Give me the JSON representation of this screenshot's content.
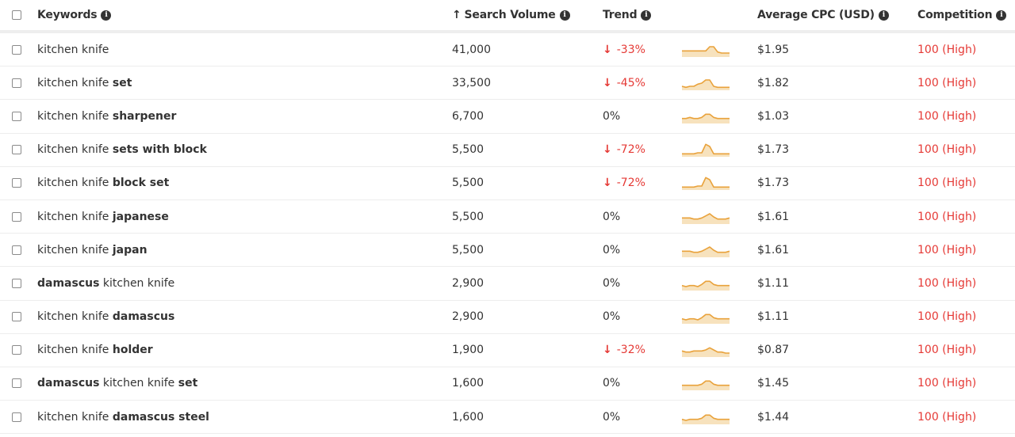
{
  "header": {
    "keywords": "Keywords",
    "search_volume": "Search Volume",
    "search_volume_sort": "↑",
    "trend": "Trend",
    "avg_cpc": "Average CPC (USD)",
    "competition": "Competition",
    "info_glyph": "i"
  },
  "colors": {
    "negative": "#e53935",
    "sparkline_stroke": "#e9a23b",
    "sparkline_fill": "#f7e2bd"
  },
  "rows": [
    {
      "kw_plain": "kitchen knife",
      "kw_bold": "",
      "kw_order": "plain-bold",
      "volume": "41,000",
      "trend": "-33%",
      "trend_down": true,
      "cpc": "$1.95",
      "competition": "100 (High)",
      "spark": [
        5,
        5,
        5,
        5,
        5,
        5,
        5,
        9,
        9,
        4,
        3,
        3,
        3
      ]
    },
    {
      "kw_plain": "kitchen knife",
      "kw_bold": "set",
      "kw_order": "plain-bold",
      "volume": "33,500",
      "trend": "-45%",
      "trend_down": true,
      "cpc": "$1.82",
      "competition": "100 (High)",
      "spark": [
        3,
        2,
        3,
        3,
        5,
        6,
        9,
        9,
        3,
        2,
        2,
        2,
        2
      ]
    },
    {
      "kw_plain": "kitchen knife",
      "kw_bold": "sharpener",
      "kw_order": "plain-bold",
      "volume": "6,700",
      "trend": "0%",
      "trend_down": false,
      "cpc": "$1.03",
      "competition": "100 (High)",
      "spark": [
        4,
        4,
        5,
        4,
        4,
        5,
        8,
        8,
        5,
        4,
        4,
        4,
        4
      ]
    },
    {
      "kw_plain": "kitchen knife",
      "kw_bold": "sets with block",
      "kw_order": "plain-bold",
      "volume": "5,500",
      "trend": "-72%",
      "trend_down": true,
      "cpc": "$1.73",
      "competition": "100 (High)",
      "spark": [
        2,
        2,
        2,
        2,
        3,
        3,
        11,
        9,
        2,
        2,
        2,
        2,
        2
      ]
    },
    {
      "kw_plain": "kitchen knife",
      "kw_bold": "block set",
      "kw_order": "plain-bold",
      "volume": "5,500",
      "trend": "-72%",
      "trend_down": true,
      "cpc": "$1.73",
      "competition": "100 (High)",
      "spark": [
        2,
        2,
        2,
        2,
        3,
        3,
        11,
        9,
        2,
        2,
        2,
        2,
        2
      ]
    },
    {
      "kw_plain": "kitchen knife",
      "kw_bold": "japanese",
      "kw_order": "plain-bold",
      "volume": "5,500",
      "trend": "0%",
      "trend_down": false,
      "cpc": "$1.61",
      "competition": "100 (High)",
      "spark": [
        5,
        5,
        5,
        4,
        4,
        5,
        7,
        9,
        6,
        4,
        4,
        4,
        5
      ]
    },
    {
      "kw_plain": "kitchen knife",
      "kw_bold": "japan",
      "kw_order": "plain-bold",
      "volume": "5,500",
      "trend": "0%",
      "trend_down": false,
      "cpc": "$1.61",
      "competition": "100 (High)",
      "spark": [
        5,
        5,
        5,
        4,
        4,
        5,
        7,
        9,
        6,
        4,
        4,
        4,
        5
      ]
    },
    {
      "kw_plain": "kitchen knife",
      "kw_bold": "damascus",
      "kw_order": "bold-plain",
      "volume": "2,900",
      "trend": "0%",
      "trend_down": false,
      "cpc": "$1.11",
      "competition": "100 (High)",
      "spark": [
        4,
        3,
        4,
        4,
        3,
        5,
        8,
        8,
        5,
        4,
        4,
        4,
        4
      ]
    },
    {
      "kw_plain": "kitchen knife",
      "kw_bold": "damascus",
      "kw_order": "plain-bold",
      "volume": "2,900",
      "trend": "0%",
      "trend_down": false,
      "cpc": "$1.11",
      "competition": "100 (High)",
      "spark": [
        4,
        3,
        4,
        4,
        3,
        5,
        8,
        8,
        5,
        4,
        4,
        4,
        4
      ]
    },
    {
      "kw_plain": "kitchen knife",
      "kw_bold": "holder",
      "kw_order": "plain-bold",
      "volume": "1,900",
      "trend": "-32%",
      "trend_down": true,
      "cpc": "$0.87",
      "competition": "100 (High)",
      "spark": [
        5,
        4,
        4,
        5,
        5,
        5,
        6,
        8,
        6,
        4,
        4,
        3,
        3
      ]
    },
    {
      "kw_plain": "kitchen knife",
      "kw_bold": [
        "damascus",
        "set"
      ],
      "kw_order": "bold-plain-bold",
      "volume": "1,600",
      "trend": "0%",
      "trend_down": false,
      "cpc": "$1.45",
      "competition": "100 (High)",
      "spark": [
        4,
        4,
        4,
        4,
        4,
        5,
        8,
        8,
        5,
        4,
        4,
        4,
        4
      ]
    },
    {
      "kw_plain": "kitchen knife",
      "kw_bold": "damascus steel",
      "kw_order": "plain-bold",
      "volume": "1,600",
      "trend": "0%",
      "trend_down": false,
      "cpc": "$1.44",
      "competition": "100 (High)",
      "spark": [
        4,
        3,
        4,
        4,
        4,
        5,
        8,
        8,
        5,
        4,
        4,
        4,
        4
      ]
    }
  ]
}
